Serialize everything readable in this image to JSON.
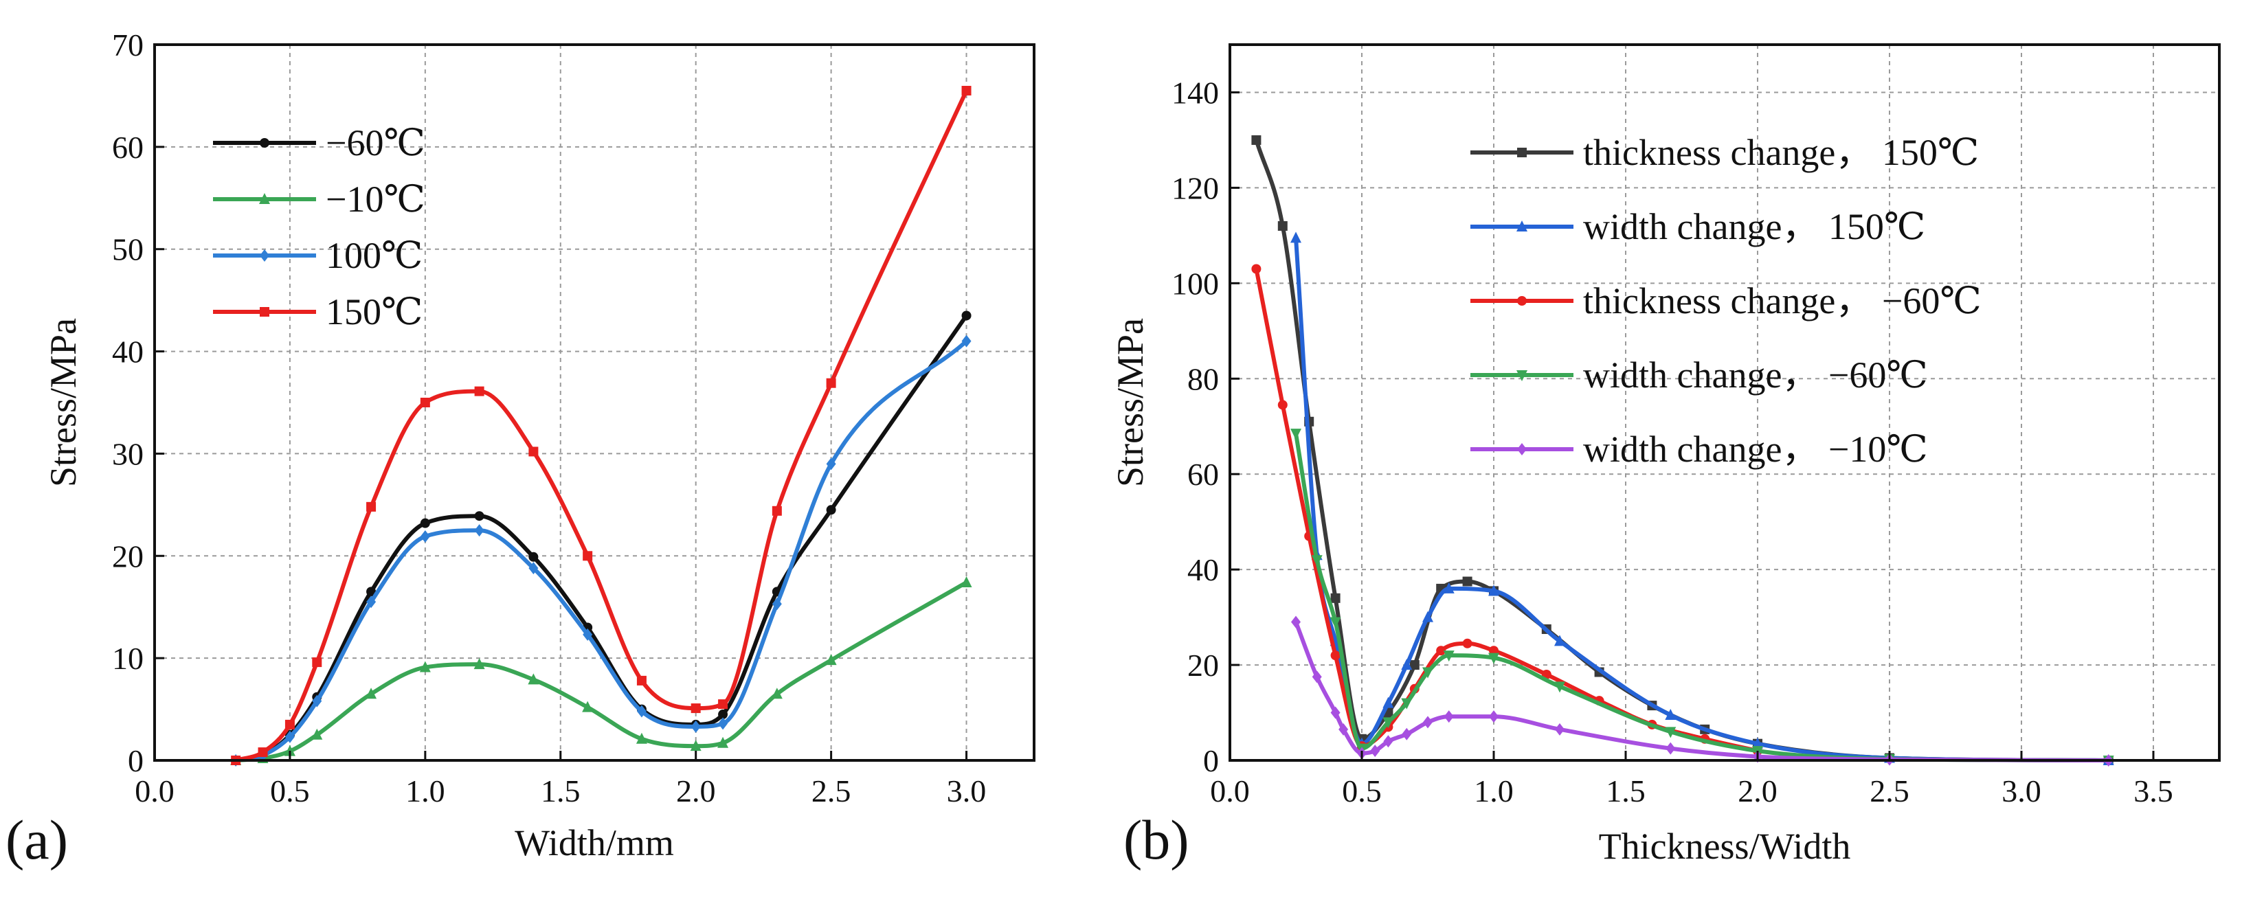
{
  "chart_data": [
    {
      "id": "a",
      "type": "line",
      "panel_label": "(a)",
      "xlabel": "Width/mm",
      "ylabel": "Stress/MPa",
      "xlim": [
        0.0,
        3.25
      ],
      "ylim": [
        0,
        70
      ],
      "x_ticks": [
        0.0,
        0.5,
        1.0,
        1.5,
        2.0,
        2.5,
        3.0
      ],
      "y_ticks": [
        0,
        10,
        20,
        30,
        40,
        50,
        60,
        70
      ],
      "x_tick_labels": [
        "0.0",
        "0.5",
        "1.0",
        "1.5",
        "2.0",
        "2.5",
        "3.0"
      ],
      "y_tick_labels": [
        "0",
        "10",
        "20",
        "30",
        "40",
        "50",
        "60",
        "70"
      ],
      "grid": true,
      "legend": "top-left",
      "series": [
        {
          "name": "−60℃",
          "color": "#111111",
          "marker": "circle",
          "points": [
            [
              0.3,
              0
            ],
            [
              0.4,
              0.5
            ],
            [
              0.5,
              2.5
            ],
            [
              0.6,
              6.2
            ],
            [
              0.8,
              16.5
            ],
            [
              1.0,
              23.2
            ],
            [
              1.2,
              23.9
            ],
            [
              1.4,
              19.9
            ],
            [
              1.6,
              13.0
            ],
            [
              1.8,
              5.0
            ],
            [
              2.0,
              3.5
            ],
            [
              2.1,
              4.5
            ],
            [
              2.3,
              16.5
            ],
            [
              2.5,
              24.5
            ],
            [
              3.0,
              43.5
            ]
          ]
        },
        {
          "name": "−10℃",
          "color": "#3aa655",
          "marker": "triangle",
          "points": [
            [
              0.3,
              0
            ],
            [
              0.4,
              0.2
            ],
            [
              0.5,
              0.9
            ],
            [
              0.6,
              2.5
            ],
            [
              0.8,
              6.5
            ],
            [
              1.0,
              9.1
            ],
            [
              1.2,
              9.4
            ],
            [
              1.4,
              7.9
            ],
            [
              1.6,
              5.2
            ],
            [
              1.8,
              2.1
            ],
            [
              2.0,
              1.4
            ],
            [
              2.1,
              1.7
            ],
            [
              2.3,
              6.5
            ],
            [
              2.5,
              9.8
            ],
            [
              3.0,
              17.4
            ]
          ]
        },
        {
          "name": "100℃",
          "color": "#2f7fd6",
          "marker": "diamond",
          "points": [
            [
              0.3,
              0
            ],
            [
              0.4,
              0.5
            ],
            [
              0.5,
              2.3
            ],
            [
              0.6,
              5.8
            ],
            [
              0.8,
              15.5
            ],
            [
              1.0,
              21.9
            ],
            [
              1.2,
              22.5
            ],
            [
              1.4,
              18.8
            ],
            [
              1.6,
              12.3
            ],
            [
              1.8,
              4.8
            ],
            [
              2.0,
              3.3
            ],
            [
              2.1,
              3.6
            ],
            [
              2.3,
              15.3
            ],
            [
              2.5,
              29.0
            ],
            [
              3.0,
              41.0
            ]
          ]
        },
        {
          "name": "150℃",
          "color": "#e8211f",
          "marker": "square",
          "points": [
            [
              0.3,
              0
            ],
            [
              0.4,
              0.8
            ],
            [
              0.5,
              3.5
            ],
            [
              0.6,
              9.6
            ],
            [
              0.8,
              24.8
            ],
            [
              1.0,
              35.0
            ],
            [
              1.2,
              36.1
            ],
            [
              1.4,
              30.2
            ],
            [
              1.6,
              20.0
            ],
            [
              1.8,
              7.8
            ],
            [
              2.0,
              5.1
            ],
            [
              2.1,
              5.5
            ],
            [
              2.3,
              24.4
            ],
            [
              2.5,
              36.9
            ],
            [
              3.0,
              65.5
            ]
          ]
        }
      ]
    },
    {
      "id": "b",
      "type": "line",
      "panel_label": "(b)",
      "xlabel": "Thickness/Width",
      "ylabel": "Stress/MPa",
      "xlim": [
        0.0,
        3.75
      ],
      "ylim": [
        0,
        150
      ],
      "x_ticks": [
        0.0,
        0.5,
        1.0,
        1.5,
        2.0,
        2.5,
        3.0,
        3.5
      ],
      "y_ticks": [
        0,
        20,
        40,
        60,
        80,
        100,
        120,
        140
      ],
      "x_tick_labels": [
        "0.0",
        "0.5",
        "1.0",
        "1.5",
        "2.0",
        "2.5",
        "3.0",
        "3.5"
      ],
      "y_tick_labels": [
        "0",
        "20",
        "40",
        "60",
        "80",
        "100",
        "120",
        "140"
      ],
      "grid": true,
      "legend": "top-right",
      "series": [
        {
          "name": "thickness change， 150℃",
          "color": "#3a3a3a",
          "marker": "square",
          "points": [
            [
              0.1,
              130
            ],
            [
              0.2,
              112
            ],
            [
              0.3,
              71
            ],
            [
              0.4,
              34
            ],
            [
              0.5,
              4.5
            ],
            [
              0.6,
              10
            ],
            [
              0.7,
              20
            ],
            [
              0.8,
              36
            ],
            [
              0.9,
              37.5
            ],
            [
              1.0,
              35.5
            ],
            [
              1.2,
              27.5
            ],
            [
              1.4,
              18.5
            ],
            [
              1.6,
              11.5
            ],
            [
              1.8,
              6.5
            ],
            [
              2.0,
              3.5
            ],
            [
              2.5,
              0.5
            ],
            [
              3.33,
              0
            ]
          ]
        },
        {
          "name": "width change， 150℃",
          "color": "#2563d6",
          "marker": "triangle",
          "points": [
            [
              0.25,
              109.5
            ],
            [
              0.33,
              43
            ],
            [
              0.4,
              25
            ],
            [
              0.5,
              3.5
            ],
            [
              0.6,
              12
            ],
            [
              0.67,
              20
            ],
            [
              0.75,
              30
            ],
            [
              0.83,
              36
            ],
            [
              1.0,
              35.5
            ],
            [
              1.25,
              25
            ],
            [
              1.67,
              9.5
            ],
            [
              2.0,
              3.5
            ],
            [
              2.5,
              0.5
            ],
            [
              3.33,
              0
            ]
          ]
        },
        {
          "name": "thickness change， −60℃",
          "color": "#e8211f",
          "marker": "circle",
          "points": [
            [
              0.1,
              103
            ],
            [
              0.2,
              74.5
            ],
            [
              0.3,
              47
            ],
            [
              0.4,
              22
            ],
            [
              0.5,
              3
            ],
            [
              0.6,
              7
            ],
            [
              0.7,
              15
            ],
            [
              0.8,
              23
            ],
            [
              0.9,
              24.5
            ],
            [
              1.0,
              23
            ],
            [
              1.2,
              18
            ],
            [
              1.4,
              12.5
            ],
            [
              1.6,
              7.5
            ],
            [
              1.8,
              4.5
            ],
            [
              2.0,
              2
            ]
          ]
        },
        {
          "name": "width change， −60℃",
          "color": "#3aa655",
          "marker": "triangle-down",
          "points": [
            [
              0.25,
              68.5
            ],
            [
              0.33,
              42
            ],
            [
              0.4,
              29
            ],
            [
              0.5,
              2.5
            ],
            [
              0.6,
              8
            ],
            [
              0.67,
              12
            ],
            [
              0.75,
              18.5
            ],
            [
              0.83,
              22
            ],
            [
              1.0,
              21.5
            ],
            [
              1.25,
              15.5
            ],
            [
              1.67,
              6
            ],
            [
              2.0,
              2
            ],
            [
              2.5,
              0.3
            ],
            [
              3.33,
              0
            ]
          ]
        },
        {
          "name": "width change， −10℃",
          "color": "#a74fe0",
          "marker": "diamond",
          "points": [
            [
              0.25,
              29
            ],
            [
              0.33,
              17.5
            ],
            [
              0.4,
              10
            ],
            [
              0.43,
              6.5
            ],
            [
              0.5,
              1.5
            ],
            [
              0.55,
              2
            ],
            [
              0.6,
              4
            ],
            [
              0.67,
              5.5
            ],
            [
              0.75,
              8
            ],
            [
              0.83,
              9.2
            ],
            [
              1.0,
              9.2
            ],
            [
              1.25,
              6.5
            ],
            [
              1.67,
              2.5
            ],
            [
              2.0,
              0.8
            ],
            [
              2.5,
              0.2
            ],
            [
              3.33,
              0
            ]
          ]
        }
      ]
    }
  ]
}
